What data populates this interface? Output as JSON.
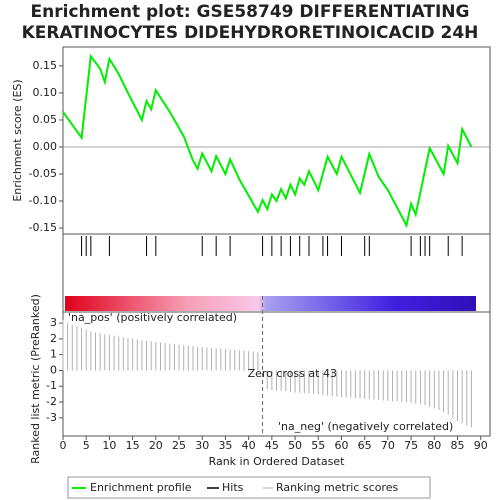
{
  "chart_data": {
    "type": "gsea",
    "title_lines": [
      "Enrichment plot: GSE58749 DIFFERENTIATING",
      "KERATINOCYTES DIDEHYDRORETINOICACID 24H"
    ],
    "xlabel": "Rank in Ordered Dataset",
    "xlim": [
      0,
      92
    ],
    "xticks": [
      0,
      5,
      10,
      15,
      20,
      25,
      30,
      35,
      40,
      45,
      50,
      55,
      60,
      65,
      70,
      75,
      80,
      85,
      90
    ],
    "es": {
      "ylabel": "Enrichment score (ES)",
      "name": "Enrichment profile",
      "color": "#00ee00",
      "ylim": [
        -0.161,
        0.185
      ],
      "yticks": [
        {
          "value": 0.15,
          "label": "0.15"
        },
        {
          "value": 0.1,
          "label": "0.10"
        },
        {
          "value": 0.05,
          "label": "0.05"
        },
        {
          "value": 0,
          "label": "0.00"
        },
        {
          "value": -0.05,
          "label": "-0.05"
        },
        {
          "value": -0.1,
          "label": "-0.10"
        },
        {
          "value": -0.15,
          "label": "-0.15"
        }
      ],
      "x": [
        0,
        4,
        6,
        8,
        9,
        10,
        12,
        14,
        17,
        18,
        19,
        20,
        23,
        26,
        28,
        29,
        30,
        32,
        33,
        35,
        36,
        38,
        42,
        43,
        44,
        45,
        46,
        47,
        48,
        49,
        50,
        51,
        52,
        53,
        55,
        57,
        59,
        60,
        64,
        66,
        68,
        70,
        74,
        75,
        76,
        79,
        82,
        83,
        85,
        86,
        88
      ],
      "values": [
        0.065,
        0.017,
        0.168,
        0.145,
        0.12,
        0.163,
        0.135,
        0.1,
        0.05,
        0.085,
        0.07,
        0.105,
        0.065,
        0.02,
        -0.025,
        -0.04,
        -0.012,
        -0.045,
        -0.017,
        -0.05,
        -0.023,
        -0.06,
        -0.12,
        -0.098,
        -0.115,
        -0.088,
        -0.1,
        -0.078,
        -0.095,
        -0.07,
        -0.088,
        -0.058,
        -0.07,
        -0.045,
        -0.08,
        -0.018,
        -0.05,
        -0.018,
        -0.085,
        -0.013,
        -0.055,
        -0.08,
        -0.145,
        -0.105,
        -0.125,
        -0.002,
        -0.05,
        0.002,
        -0.03,
        0.033,
        0.0
      ]
    },
    "hits": {
      "name": "Hits",
      "color": "#000000",
      "x": [
        4,
        5,
        6,
        10,
        18,
        20,
        30,
        33,
        36,
        43,
        45,
        47,
        49,
        51,
        53,
        56,
        57,
        60,
        65,
        66,
        75,
        77,
        78,
        79,
        83,
        86
      ]
    },
    "metric": {
      "ylabel": "Ranked list metric (PreRanked)",
      "name": "Ranking metric scores",
      "color": "#b0b0b0",
      "ylim": [
        -4.15,
        3.7
      ],
      "yticks": [
        3,
        2,
        1,
        0,
        -1,
        -2,
        -3
      ],
      "x": [
        0,
        1,
        2,
        3,
        4,
        5,
        6,
        7,
        8,
        9,
        10,
        11,
        12,
        13,
        14,
        15,
        16,
        17,
        18,
        19,
        20,
        21,
        22,
        23,
        24,
        25,
        26,
        27,
        28,
        29,
        30,
        31,
        32,
        33,
        34,
        35,
        36,
        37,
        38,
        39,
        40,
        41,
        42,
        43,
        44,
        45,
        46,
        47,
        48,
        49,
        50,
        51,
        52,
        53,
        54,
        55,
        56,
        57,
        58,
        59,
        60,
        61,
        62,
        63,
        64,
        65,
        66,
        67,
        68,
        69,
        70,
        71,
        72,
        73,
        74,
        75,
        76,
        77,
        78,
        79,
        80,
        81,
        82,
        83,
        84,
        85,
        86,
        87,
        88
      ],
      "values": [
        3.2,
        3.0,
        2.9,
        2.8,
        2.7,
        2.6,
        2.5,
        2.4,
        2.35,
        2.3,
        2.25,
        2.2,
        2.15,
        2.1,
        2.05,
        2.0,
        1.95,
        1.9,
        1.88,
        1.85,
        1.8,
        1.78,
        1.75,
        1.7,
        1.68,
        1.65,
        1.6,
        1.58,
        1.55,
        1.5,
        1.48,
        1.45,
        1.42,
        1.4,
        1.38,
        1.35,
        1.32,
        1.3,
        1.28,
        1.25,
        1.22,
        1.2,
        1.15,
        0,
        -1.2,
        -1.25,
        -1.28,
        -1.3,
        -1.33,
        -1.36,
        -1.4,
        -1.42,
        -1.45,
        -1.48,
        -1.5,
        -1.53,
        -1.56,
        -1.6,
        -1.62,
        -1.65,
        -1.68,
        -1.7,
        -1.72,
        -1.75,
        -1.78,
        -1.8,
        -1.82,
        -1.85,
        -1.87,
        -1.9,
        -1.92,
        -1.95,
        -1.97,
        -2.0,
        -2.02,
        -2.05,
        -2.1,
        -2.15,
        -2.2,
        -2.3,
        -2.4,
        -2.5,
        -2.65,
        -2.8,
        -3.0,
        -3.2,
        -3.35,
        -3.5,
        -3.6
      ]
    },
    "zero_cross": {
      "x": 43,
      "label": "Zero cross at 43"
    },
    "pos_label": "'na_pos' (positively correlated)",
    "neg_label": "'na_neg' (negatively correlated)"
  }
}
